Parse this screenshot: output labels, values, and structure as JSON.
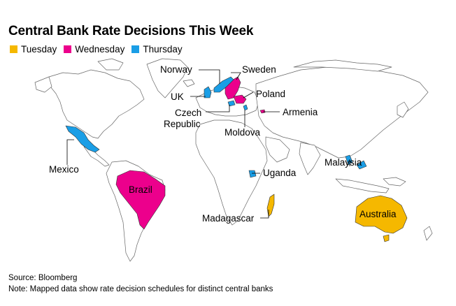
{
  "title": "Central Bank Rate Decisions This Week",
  "legend": [
    {
      "label": "Tuesday",
      "color": "#f5b800"
    },
    {
      "label": "Wednesday",
      "color": "#ec008c"
    },
    {
      "label": "Thursday",
      "color": "#1a9ee6"
    }
  ],
  "labels": {
    "norway": "Norway",
    "sweden": "Sweden",
    "uk": "UK",
    "poland": "Poland",
    "czech_1": "Czech",
    "czech_2": "Republic",
    "armenia": "Armenia",
    "moldova": "Moldova",
    "mexico": "Mexico",
    "uganda": "Uganda",
    "malaysia": "Malaysia",
    "brazil": "Brazil",
    "madagascar": "Madagascar",
    "australia": "Australia"
  },
  "footer": {
    "source": "Source: Bloomberg",
    "note": "Note: Mapped data show rate decision schedules for distinct central banks"
  }
}
